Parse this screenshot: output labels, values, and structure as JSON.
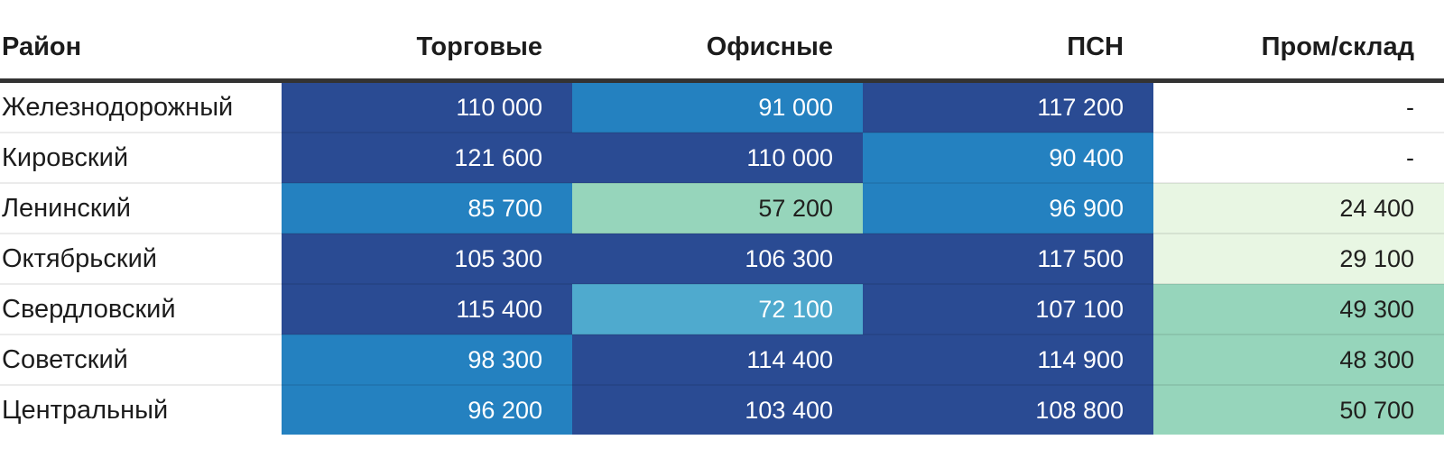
{
  "palette": {
    "navy": {
      "bg": "#2a4b93",
      "fg": "#ffffff"
    },
    "blue": {
      "bg": "#2481c0",
      "fg": "#ffffff"
    },
    "teal": {
      "bg": "#4faace",
      "fg": "#ffffff"
    },
    "green": {
      "bg": "#96d5bb",
      "fg": "#20201e"
    },
    "pale": {
      "bg": "#e8f6e3",
      "fg": "#20201e"
    },
    "none": {
      "bg": "#ffffff",
      "fg": "#1c1c1c"
    }
  },
  "header_border_color": "#333333",
  "row_separator_color": "rgba(0,0,0,0.08)",
  "table": {
    "columns": [
      {
        "key": "district",
        "label": "Район"
      },
      {
        "key": "torgovye",
        "label": "Торговые"
      },
      {
        "key": "ofisnye",
        "label": "Офисные"
      },
      {
        "key": "psn",
        "label": "ПСН"
      },
      {
        "key": "prom_sklad",
        "label": "Пром/склад"
      }
    ],
    "rows": [
      {
        "district": "Железнодорожный",
        "cells": [
          {
            "text": "110 000",
            "color": "navy"
          },
          {
            "text": "91 000",
            "color": "blue"
          },
          {
            "text": "117 200",
            "color": "navy"
          },
          {
            "text": "-",
            "color": "none"
          }
        ]
      },
      {
        "district": "Кировский",
        "cells": [
          {
            "text": "121 600",
            "color": "navy"
          },
          {
            "text": "110 000",
            "color": "navy"
          },
          {
            "text": "90 400",
            "color": "blue"
          },
          {
            "text": "-",
            "color": "none"
          }
        ]
      },
      {
        "district": "Ленинский",
        "cells": [
          {
            "text": "85 700",
            "color": "blue"
          },
          {
            "text": "57 200",
            "color": "green"
          },
          {
            "text": "96 900",
            "color": "blue"
          },
          {
            "text": "24 400",
            "color": "pale"
          }
        ]
      },
      {
        "district": "Октябрьский",
        "cells": [
          {
            "text": "105 300",
            "color": "navy"
          },
          {
            "text": "106 300",
            "color": "navy"
          },
          {
            "text": "117 500",
            "color": "navy"
          },
          {
            "text": "29 100",
            "color": "pale"
          }
        ]
      },
      {
        "district": "Свердловский",
        "cells": [
          {
            "text": "115 400",
            "color": "navy"
          },
          {
            "text": "72 100",
            "color": "teal"
          },
          {
            "text": "107 100",
            "color": "navy"
          },
          {
            "text": "49 300",
            "color": "green"
          }
        ]
      },
      {
        "district": "Советский",
        "cells": [
          {
            "text": "98 300",
            "color": "blue"
          },
          {
            "text": "114 400",
            "color": "navy"
          },
          {
            "text": "114 900",
            "color": "navy"
          },
          {
            "text": "48 300",
            "color": "green"
          }
        ]
      },
      {
        "district": "Центральный",
        "cells": [
          {
            "text": "96 200",
            "color": "blue"
          },
          {
            "text": "103 400",
            "color": "navy"
          },
          {
            "text": "108 800",
            "color": "navy"
          },
          {
            "text": "50 700",
            "color": "green"
          }
        ]
      }
    ]
  },
  "chart_data": {
    "type": "heatmap",
    "title": "",
    "row_label": "Район",
    "rows": [
      "Железнодорожный",
      "Кировский",
      "Ленинский",
      "Октябрьский",
      "Свердловский",
      "Советский",
      "Центральный"
    ],
    "columns": [
      "Торговые",
      "Офисные",
      "ПСН",
      "Пром/склад"
    ],
    "values": [
      [
        110000,
        91000,
        117200,
        null
      ],
      [
        121600,
        110000,
        90400,
        null
      ],
      [
        85700,
        57200,
        96900,
        24400
      ],
      [
        105300,
        106300,
        117500,
        29100
      ],
      [
        115400,
        72100,
        107100,
        49300
      ],
      [
        98300,
        114400,
        114900,
        48300
      ],
      [
        96200,
        103400,
        108800,
        50700
      ]
    ],
    "missing_marker": "-",
    "legend_position": "none",
    "grid": false,
    "color_scale": {
      "buckets": [
        {
          "range": "≈24000–30000",
          "color": "#e8f6e3"
        },
        {
          "range": "≈48000–58000",
          "color": "#96d5bb"
        },
        {
          "range": "≈72000",
          "color": "#4faace"
        },
        {
          "range": "≈85000–99000",
          "color": "#2481c0"
        },
        {
          "range": "≥≈103000",
          "color": "#2a4b93"
        }
      ]
    }
  }
}
